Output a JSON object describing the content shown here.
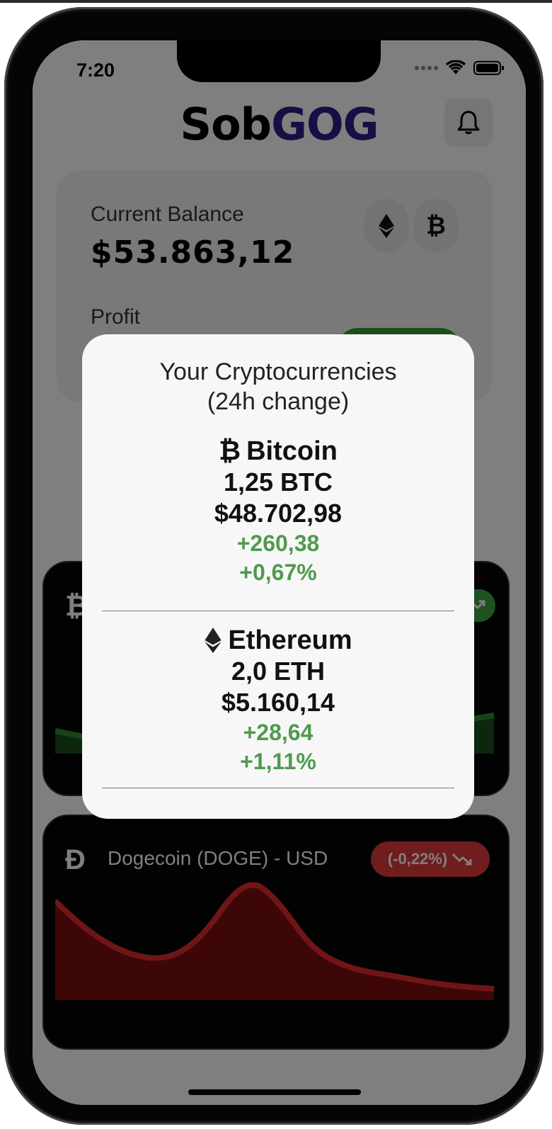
{
  "status": {
    "time": "7:20"
  },
  "app": {
    "logo_part1": "Sob",
    "logo_part2": "GOG",
    "balance": {
      "label": "Current Balance",
      "value": "$53.863,12"
    },
    "profit_label": "Profit",
    "doge_card": {
      "title": "Dogecoin (DOGE) - USD",
      "change": "(-0,22%)"
    }
  },
  "modal": {
    "title_line1": "Your Cryptocurrencies",
    "title_line2": "(24h change)",
    "coins": [
      {
        "symbol_icon": "bitcoin-icon",
        "name": "Bitcoin",
        "amount": "1,25 BTC",
        "value": "$48.702,98",
        "change": "+260,38",
        "change_pct": "+0,67%"
      },
      {
        "symbol_icon": "ethereum-icon",
        "name": "Ethereum",
        "amount": "2,0 ETH",
        "value": "$5.160,14",
        "change": "+28,64",
        "change_pct": "+1,11%"
      }
    ]
  },
  "colors": {
    "brand": "#2a1f86",
    "positive": "#4f9a4f",
    "negative": "#e03a3a"
  }
}
